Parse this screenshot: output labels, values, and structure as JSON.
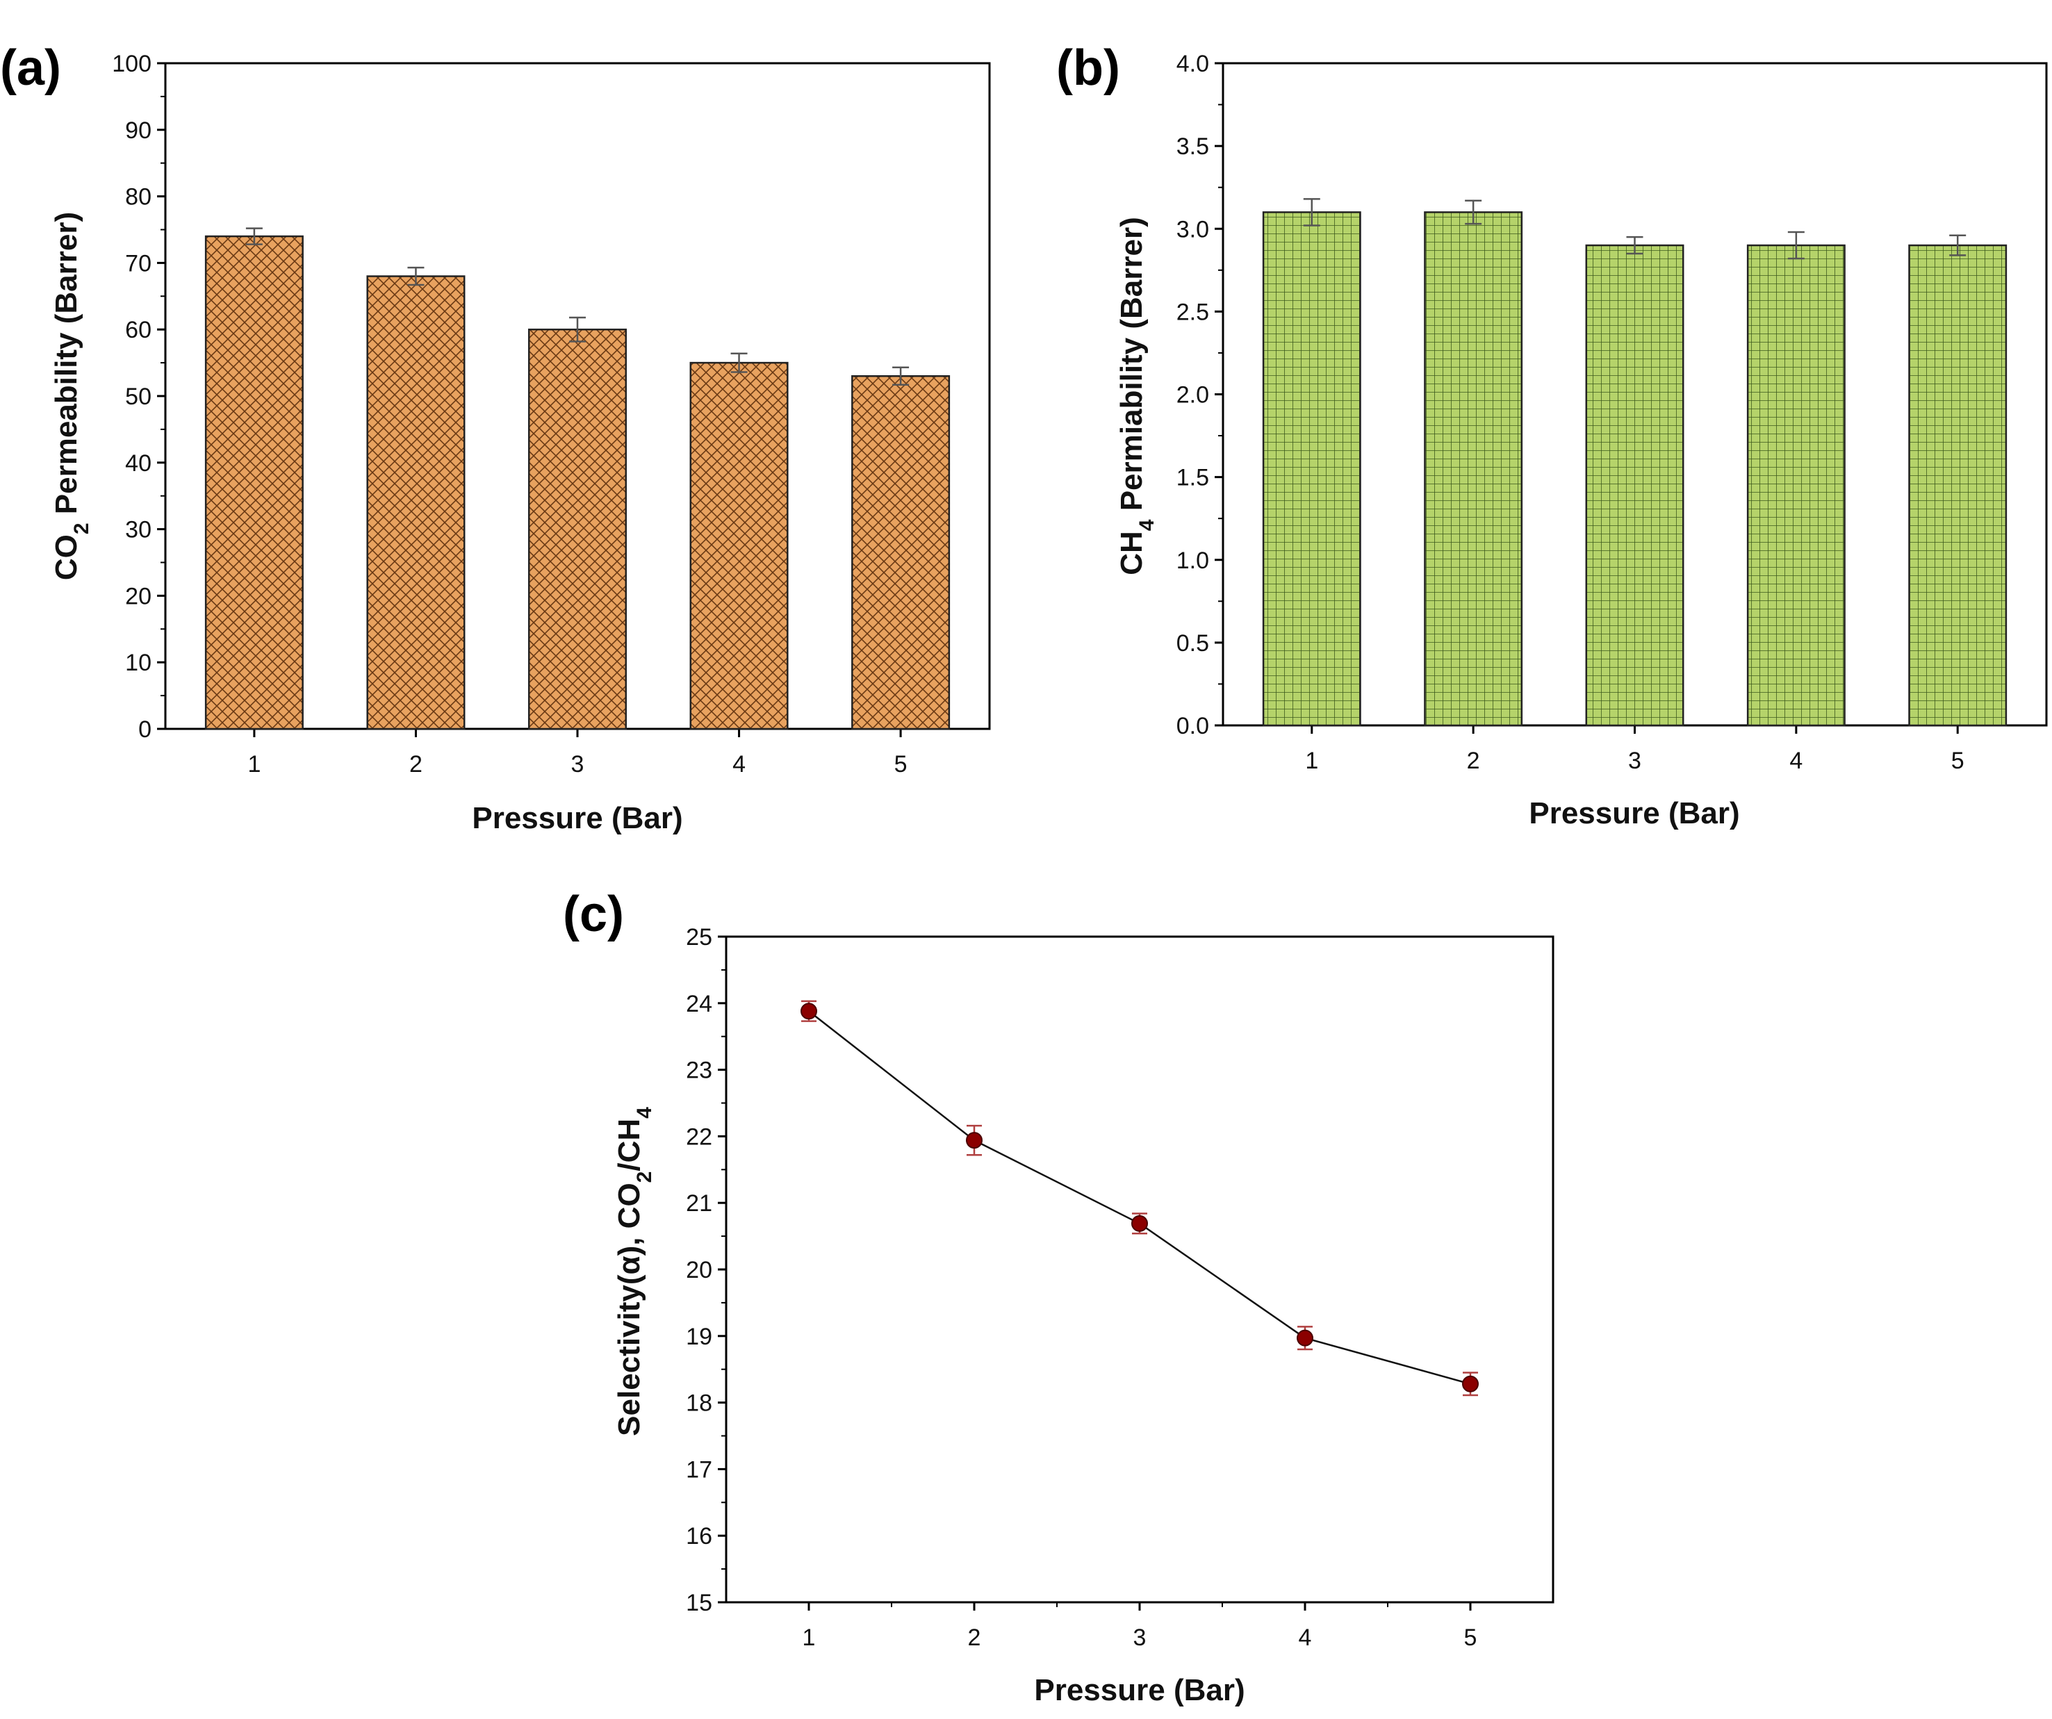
{
  "chart_data": [
    {
      "id": "a",
      "type": "bar",
      "panel_label": "(a)",
      "categories": [
        "1",
        "2",
        "3",
        "4",
        "5"
      ],
      "values": [
        74,
        68,
        60,
        55,
        53
      ],
      "errors": [
        1.2,
        1.3,
        1.8,
        1.4,
        1.3
      ],
      "xlabel": "Pressure (Bar)",
      "ylabel": {
        "pre": "CO",
        "sub": "2",
        "post": " Permeability (Barrer)"
      },
      "ylim": [
        0,
        100
      ],
      "yticks": [
        0,
        10,
        20,
        30,
        40,
        50,
        60,
        70,
        80,
        90,
        100
      ],
      "ytick_labels": [
        "0",
        "10",
        "20",
        "30",
        "40",
        "50",
        "60",
        "70",
        "80",
        "90",
        "100"
      ],
      "fill_color": "#e8a25f",
      "hatch": "crosshatch",
      "grid": false
    },
    {
      "id": "b",
      "type": "bar",
      "panel_label": "(b)",
      "categories": [
        "1",
        "2",
        "3",
        "4",
        "5"
      ],
      "values": [
        3.1,
        3.1,
        2.9,
        2.9,
        2.9
      ],
      "errors": [
        0.08,
        0.07,
        0.05,
        0.08,
        0.06
      ],
      "xlabel": "Pressure (Bar)",
      "ylabel": {
        "pre": "CH",
        "sub": "4",
        "post": " Permiability (Barrer)"
      },
      "ylim": [
        0,
        4
      ],
      "yticks": [
        0,
        0.5,
        1,
        1.5,
        2,
        2.5,
        3,
        3.5,
        4
      ],
      "ytick_labels": [
        "0.0",
        "0.5",
        "1.0",
        "1.5",
        "2.0",
        "2.5",
        "3.0",
        "3.5",
        "4.0"
      ],
      "fill_color": "#b5d36a",
      "hatch": "grid",
      "grid": false
    },
    {
      "id": "c",
      "type": "line",
      "panel_label": "(c)",
      "x": [
        1,
        2,
        3,
        4,
        5
      ],
      "xtick_labels": [
        "1",
        "2",
        "3",
        "4",
        "5"
      ],
      "y": [
        23.88,
        21.94,
        20.69,
        18.97,
        18.28
      ],
      "errors": [
        0.15,
        0.22,
        0.15,
        0.17,
        0.17
      ],
      "xlabel": "Pressure (Bar)",
      "ylabel": {
        "pre": "Selectivity(α), CO",
        "sub": "2",
        "mid": "/CH",
        "sub2": "4"
      },
      "xlim": [
        0.5,
        5.5
      ],
      "ylim": [
        15,
        25
      ],
      "yticks": [
        15,
        16,
        17,
        18,
        19,
        20,
        21,
        22,
        23,
        24,
        25
      ],
      "ytick_labels": [
        "15",
        "16",
        "17",
        "18",
        "19",
        "20",
        "21",
        "22",
        "23",
        "24",
        "25"
      ],
      "marker_color": "#8b0000",
      "line_color": "#111111",
      "grid": false
    }
  ]
}
